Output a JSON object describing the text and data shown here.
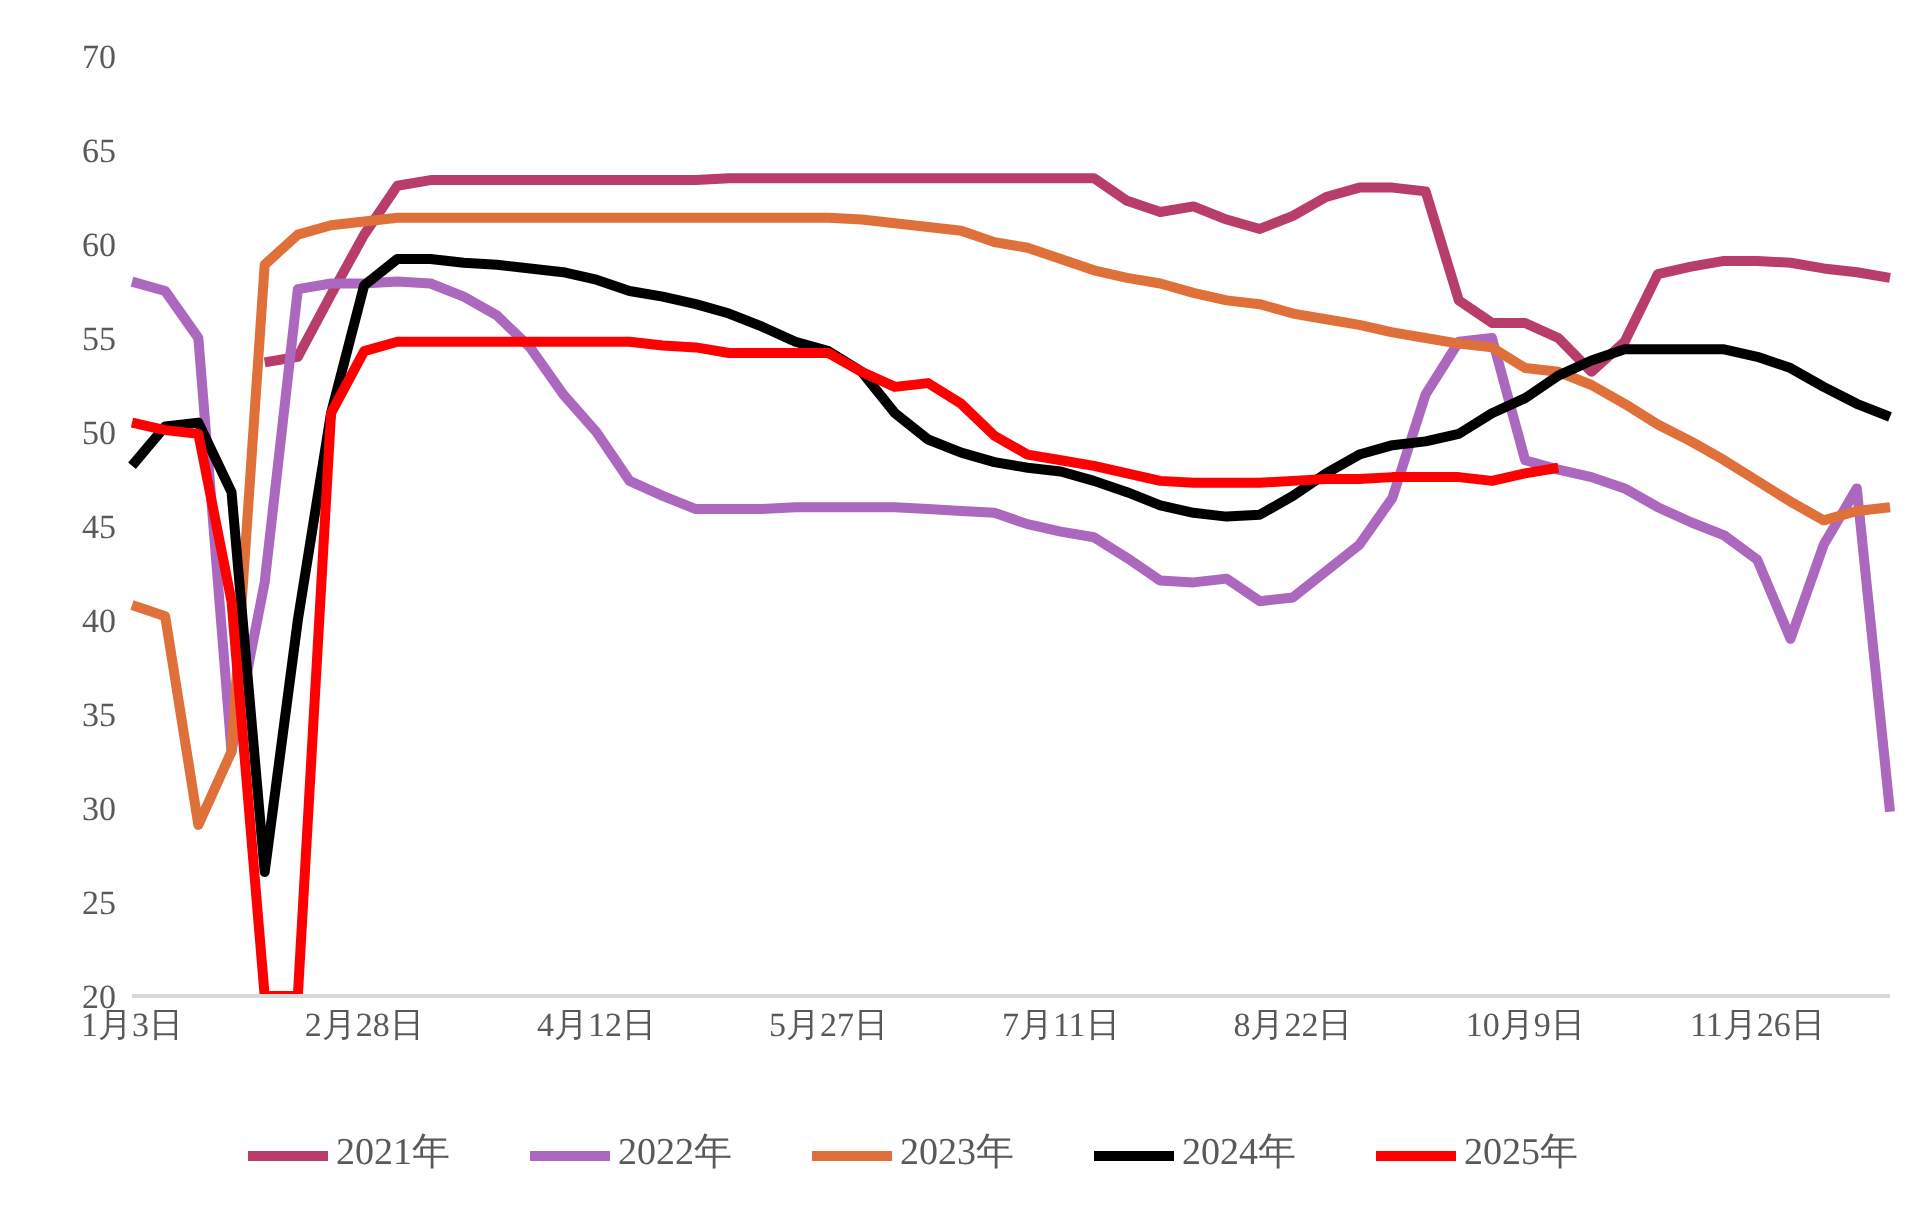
{
  "chart_data": {
    "type": "line",
    "categories": [
      "1月3日",
      null,
      null,
      null,
      null,
      null,
      null,
      "2月28日",
      null,
      null,
      null,
      null,
      null,
      null,
      "4月12日",
      null,
      null,
      null,
      null,
      null,
      null,
      "5月27日",
      null,
      null,
      null,
      null,
      null,
      null,
      "7月11日",
      null,
      null,
      null,
      null,
      null,
      null,
      "8月22日",
      null,
      null,
      null,
      null,
      null,
      null,
      "10月9日",
      null,
      null,
      null,
      null,
      null,
      null,
      "11月26日",
      null,
      null,
      null,
      null
    ],
    "series": [
      {
        "name": "2021年",
        "color": "#b83d6b",
        "values": [
          null,
          null,
          null,
          null,
          53.7,
          54,
          57.3,
          60.5,
          63.1,
          63.4,
          63.4,
          63.4,
          63.4,
          63.4,
          63.4,
          63.4,
          63.4,
          63.4,
          63.5,
          63.5,
          63.5,
          63.5,
          63.5,
          63.5,
          63.5,
          63.5,
          63.5,
          63.5,
          63.5,
          63.5,
          62.3,
          61.7,
          62,
          61.3,
          60.8,
          61.5,
          62.5,
          63,
          63,
          62.8,
          57,
          55.8,
          55.8,
          55,
          53.2,
          54.8,
          58.4,
          58.8,
          59.1,
          59.1,
          59,
          58.7,
          58.5,
          58.2
        ]
      },
      {
        "name": "2022年",
        "color": "#ac68bf",
        "values": [
          58,
          57.5,
          55,
          33,
          42,
          57.6,
          57.9,
          57.9,
          58,
          57.9,
          57.2,
          56.2,
          54.5,
          52,
          50,
          47.4,
          46.6,
          45.9,
          45.9,
          45.9,
          46,
          46,
          46,
          46,
          45.9,
          45.8,
          45.7,
          45.1,
          44.7,
          44.4,
          43.3,
          42.1,
          42,
          42.2,
          41,
          41.2,
          42.6,
          44,
          46.5,
          52,
          54.8,
          55,
          48.5,
          48,
          47.6,
          47,
          46,
          45.2,
          44.5,
          43.2,
          39,
          44,
          47,
          29.8
        ]
      },
      {
        "name": "2023年",
        "color": "#e0703a",
        "values": [
          40.8,
          40.2,
          29.1,
          33,
          58.9,
          60.5,
          61,
          61.2,
          61.4,
          61.4,
          61.4,
          61.4,
          61.4,
          61.4,
          61.4,
          61.4,
          61.4,
          61.4,
          61.4,
          61.4,
          61.4,
          61.4,
          61.3,
          61.1,
          60.9,
          60.7,
          60.1,
          59.8,
          59.2,
          58.6,
          58.2,
          57.9,
          57.4,
          57,
          56.8,
          56.3,
          56,
          55.7,
          55.3,
          55,
          54.7,
          54.5,
          53.4,
          53.2,
          52.5,
          51.5,
          50.4,
          49.5,
          48.5,
          47.4,
          46.3,
          45.3,
          45.8,
          46
        ]
      },
      {
        "name": "2024年",
        "color": "#000000",
        "values": [
          48.2,
          50.3,
          50.5,
          46.8,
          26.6,
          40,
          51,
          57.8,
          59.2,
          59.2,
          59,
          58.9,
          58.7,
          58.5,
          58.1,
          57.5,
          57.2,
          56.8,
          56.3,
          55.6,
          54.8,
          54.3,
          53.2,
          51,
          49.6,
          48.9,
          48.4,
          48.1,
          47.9,
          47.4,
          46.8,
          46.1,
          45.7,
          45.5,
          45.6,
          46.6,
          47.8,
          48.8,
          49.3,
          49.5,
          49.9,
          51,
          51.8,
          53,
          53.8,
          54.4,
          54.4,
          54.4,
          54.4,
          54,
          53.4,
          52.4,
          51.5,
          50.8
        ]
      },
      {
        "name": "2025年",
        "color": "#ff0000",
        "values": [
          50.5,
          50.1,
          49.9,
          41,
          20,
          20,
          51,
          54.3,
          54.8,
          54.8,
          54.8,
          54.8,
          54.8,
          54.8,
          54.8,
          54.8,
          54.6,
          54.5,
          54.2,
          54.2,
          54.2,
          54.2,
          53.2,
          52.4,
          52.6,
          51.5,
          49.8,
          48.8,
          48.5,
          48.2,
          47.8,
          47.4,
          47.3,
          47.3,
          47.3,
          47.4,
          47.5,
          47.5,
          47.6,
          47.6,
          47.6,
          47.4,
          47.8,
          48.1,
          null,
          null,
          null,
          null,
          null,
          null,
          null,
          null,
          null,
          null
        ]
      }
    ],
    "ylim": [
      20,
      70
    ],
    "yticks": [
      20,
      25,
      30,
      35,
      40,
      45,
      50,
      55,
      60,
      65,
      70
    ],
    "grid": false,
    "legend": "bottom"
  }
}
